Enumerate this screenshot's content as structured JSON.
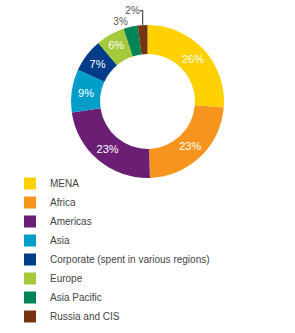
{
  "chart_data": {
    "type": "pie",
    "categories": [
      "MENA",
      "Africa",
      "Americas",
      "Asia",
      "Corporate (spent in various regions)",
      "Europe",
      "Asia Pacific",
      "Russia and CIS"
    ],
    "values": [
      26,
      23,
      23,
      9,
      7,
      6,
      3,
      2
    ],
    "value_labels": [
      "26%",
      "23%",
      "23%",
      "9%",
      "7%",
      "6%",
      "3%",
      "2%"
    ],
    "colors": [
      "#ffd100",
      "#f7941d",
      "#6b1f74",
      "#009ec9",
      "#003c88",
      "#a5c93b",
      "#008557",
      "#743410"
    ],
    "data_labels": true,
    "legend": "bottom"
  }
}
